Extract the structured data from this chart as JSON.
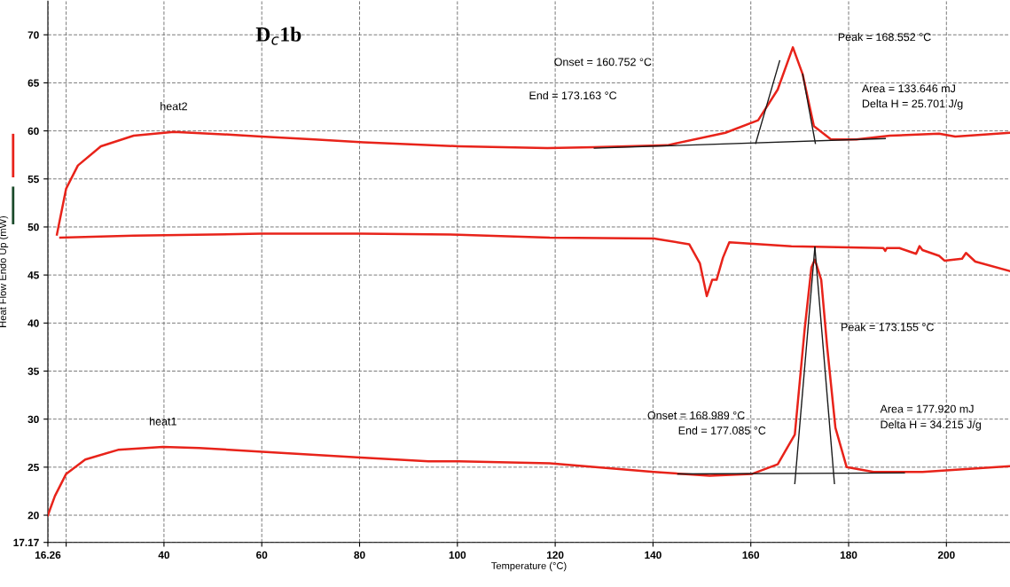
{
  "chart_data": {
    "type": "line",
    "title": "D$_{c}$1b",
    "xlabel": "Temperature (°C)",
    "ylabel": "Heat Flow Endo Up (mW)",
    "xlim": [
      16.26,
      213
    ],
    "ylim": [
      17.17,
      73.5
    ],
    "xticks": [
      16.26,
      {
        "value": 20,
        "label": null
      },
      40,
      60,
      80,
      100,
      120,
      140,
      160,
      180,
      200
    ],
    "yticks": [
      17.17,
      20,
      25,
      30,
      35,
      40,
      45,
      50,
      55,
      60,
      65,
      70
    ],
    "grid": true,
    "legend": false,
    "line_style": "solid",
    "series": [
      {
        "name": "heat2",
        "color": "#e8231a",
        "x": [
          18.1,
          20.0,
          22.4,
          27.1,
          33.8,
          42,
          53.9,
          59.9,
          70.8,
          80.8,
          100.3,
          118.4,
          128,
          142.9,
          154.8,
          161.5,
          165.5,
          168.6,
          170.6,
          172.9,
          176.4,
          181.6,
          188.4,
          198.5,
          201.8,
          213
        ],
        "values": [
          49.2,
          54.0,
          56.4,
          58.4,
          59.5,
          59.9,
          59.6,
          59.4,
          59.1,
          58.8,
          58.4,
          58.2,
          58.3,
          58.5,
          59.8,
          61.1,
          64.3,
          68.7,
          65.9,
          60.5,
          59.1,
          59.1,
          59.5,
          59.7,
          59.4,
          59.8
        ]
      },
      {
        "color": "#e8231a",
        "x": [
          18.8,
          33.8,
          59.9,
          80.2,
          100.3,
          118.9,
          140.2,
          147.4,
          149.6,
          151,
          152.1,
          153,
          154.3,
          155.6,
          168.3,
          187.1,
          187.5,
          187.8,
          190.4,
          193.8,
          194.5,
          195.1,
          198.5,
          199.6,
          203.2,
          204.0,
          205.9,
          213
        ],
        "values": [
          48.9,
          49.1,
          49.3,
          49.3,
          49.2,
          48.9,
          48.8,
          48.2,
          46.2,
          42.8,
          44.5,
          44.5,
          46.8,
          48.4,
          48.0,
          47.8,
          47.5,
          47.8,
          47.8,
          47.2,
          48.0,
          47.6,
          47.0,
          46.5,
          46.7,
          47.3,
          46.4,
          45.4
        ]
      },
      {
        "name": "heat1",
        "color": "#e8231a",
        "x": [
          16.26,
          17.7,
          20.0,
          23.9,
          30.6,
          39.8,
          47.2,
          60.1,
          80.2,
          94.1,
          100.3,
          118.9,
          140.2,
          151.6,
          160.3,
          165.5,
          169,
          171,
          172.4,
          173.1,
          174.4,
          175.6,
          177.3,
          179.6,
          185.1,
          195.1,
          213
        ],
        "values": [
          20,
          22.0,
          24.3,
          25.8,
          26.8,
          27.1,
          27.0,
          26.6,
          26.0,
          25.6,
          25.6,
          25.4,
          24.5,
          24.1,
          24.3,
          25.3,
          28.4,
          39.3,
          45.8,
          46.6,
          44.5,
          37.6,
          29.1,
          25.0,
          24.5,
          24.5,
          25.1
        ]
      },
      {
        "color": "#1a1a1a",
        "x": [
          128.0,
          187.5
        ],
        "values": [
          58.2,
          59.2
        ]
      },
      {
        "color": "#1a1a1a",
        "x": [
          161.0,
          165.9
        ],
        "values": [
          58.7,
          67.3
        ]
      },
      {
        "color": "#1a1a1a",
        "x": [
          170.6,
          173.2
        ],
        "values": [
          65.9,
          58.7
        ]
      },
      {
        "color": "#1a1a1a",
        "x": [
          145.1,
          191.4
        ],
        "values": [
          24.3,
          24.4
        ]
      },
      {
        "color": "#1a1a1a",
        "x": [
          169.0,
          173.1
        ],
        "values": [
          23.3,
          47.9
        ]
      },
      {
        "color": "#1a1a1a",
        "x": [
          173.1,
          177.1
        ],
        "values": [
          47.9,
          23.3
        ]
      }
    ],
    "annotations": [
      "Onset = 160.752 °C",
      "End = 173.163 °C",
      "Peak = 168.552 °C",
      "Area = 133.646 mJ",
      "Delta H = 25.701 J/g",
      "Peak = 173.155 °C",
      "Onset = 168.989 °C",
      "End = 177.085 °C",
      "Area = 177.920 mJ",
      "Delta H = 34.215 J/g"
    ]
  }
}
